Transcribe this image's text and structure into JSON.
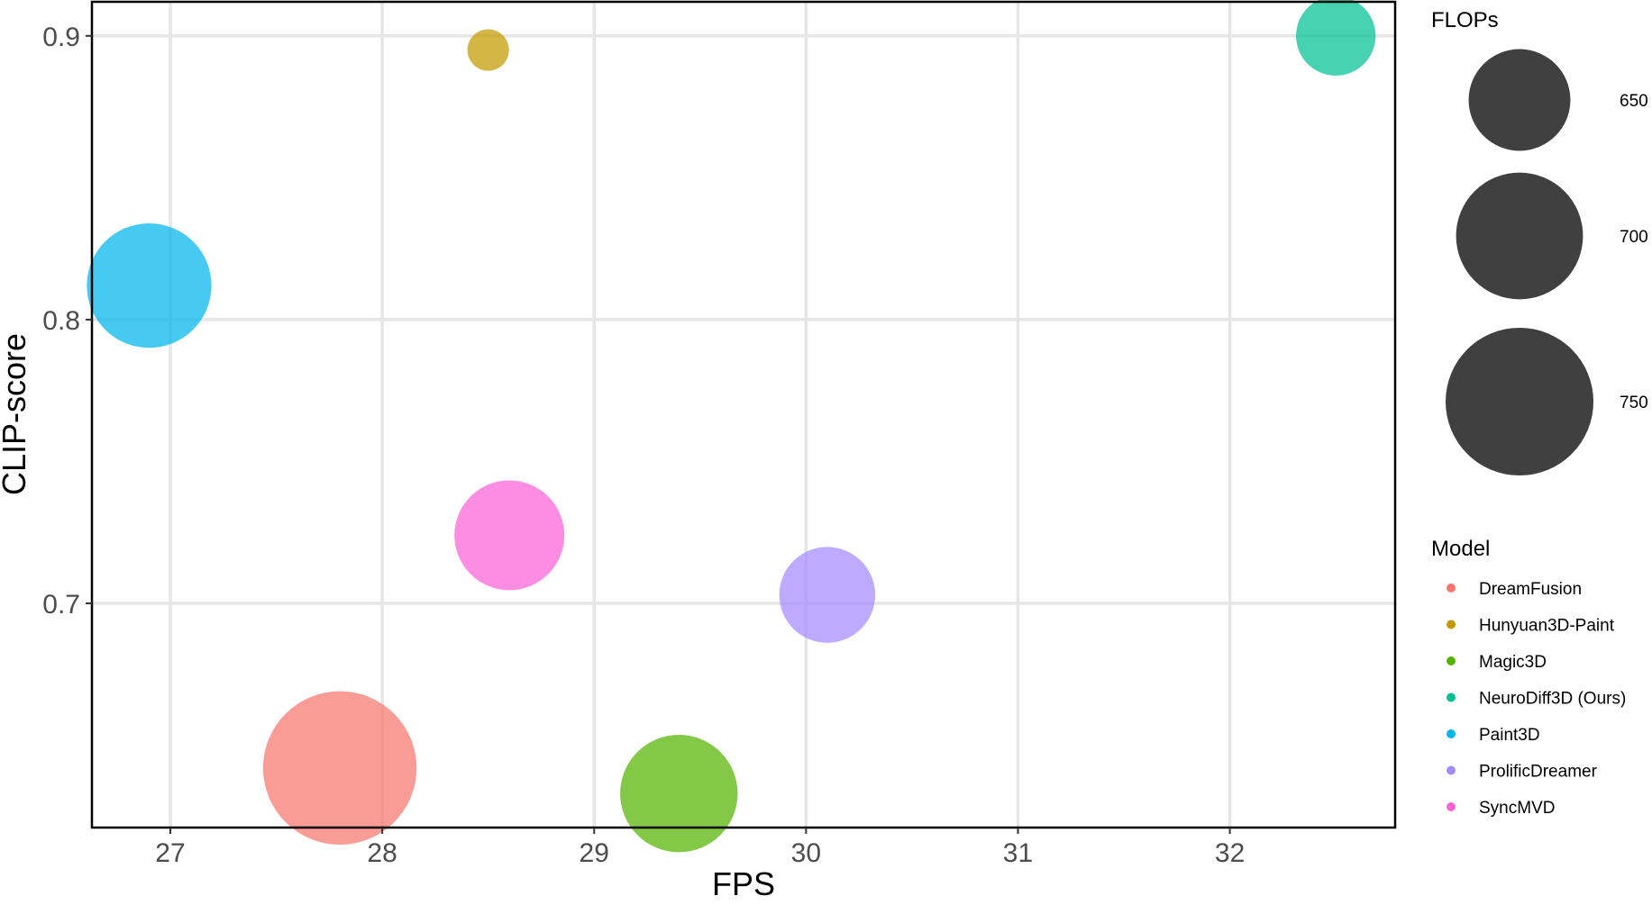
{
  "chart_data": {
    "type": "scatter",
    "title": "",
    "xlabel": "FPS",
    "ylabel": "CLIP-score",
    "xlim": [
      26.63,
      32.78
    ],
    "ylim": [
      0.621,
      0.912
    ],
    "x_ticks": [
      27,
      28,
      29,
      30,
      31,
      32
    ],
    "x_tick_labels": [
      "27",
      "28",
      "29",
      "30",
      "31",
      "32"
    ],
    "y_ticks": [
      0.9,
      0.8,
      0.7
    ],
    "y_tick_labels": [
      "0.9",
      "0.8",
      "0.7"
    ],
    "grid": true,
    "size_variable": "FLOPs",
    "points": [
      {
        "model": "DreamFusion",
        "x": 27.8,
        "y": 0.642,
        "flops": 765,
        "color": "#F8766D"
      },
      {
        "model": "Hunyuan3D-Paint",
        "x": 28.5,
        "y": 0.895,
        "flops": 575,
        "color": "#C49A00"
      },
      {
        "model": "Magic3D",
        "x": 29.4,
        "y": 0.633,
        "flops": 680,
        "color": "#53B400"
      },
      {
        "model": "NeuroDiff3D (Ours)",
        "x": 32.5,
        "y": 0.9,
        "flops": 615,
        "color": "#00C094"
      },
      {
        "model": "Paint3D",
        "x": 26.9,
        "y": 0.812,
        "flops": 695,
        "color": "#00B6EB"
      },
      {
        "model": "ProlificDreamer",
        "x": 30.1,
        "y": 0.703,
        "flops": 640,
        "color": "#A58AFF"
      },
      {
        "model": "SyncMVD",
        "x": 28.6,
        "y": 0.724,
        "flops": 665,
        "color": "#FB61D7"
      }
    ]
  },
  "legend_size": {
    "title": "FLOPs",
    "entries": [
      {
        "label": "650",
        "value": 650
      },
      {
        "label": "700",
        "value": 700
      },
      {
        "label": "750",
        "value": 750
      }
    ],
    "color": "#404040"
  },
  "legend_color": {
    "title": "Model",
    "entries": [
      {
        "label": "DreamFusion",
        "color": "#F8766D"
      },
      {
        "label": "Hunyuan3D-Paint",
        "color": "#C49A00"
      },
      {
        "label": "Magic3D",
        "color": "#53B400"
      },
      {
        "label": "NeuroDiff3D (Ours)",
        "color": "#00C094"
      },
      {
        "label": "Paint3D",
        "color": "#00B6EB"
      },
      {
        "label": "ProlificDreamer",
        "color": "#A58AFF"
      },
      {
        "label": "SyncMVD",
        "color": "#FB61D7"
      }
    ]
  }
}
